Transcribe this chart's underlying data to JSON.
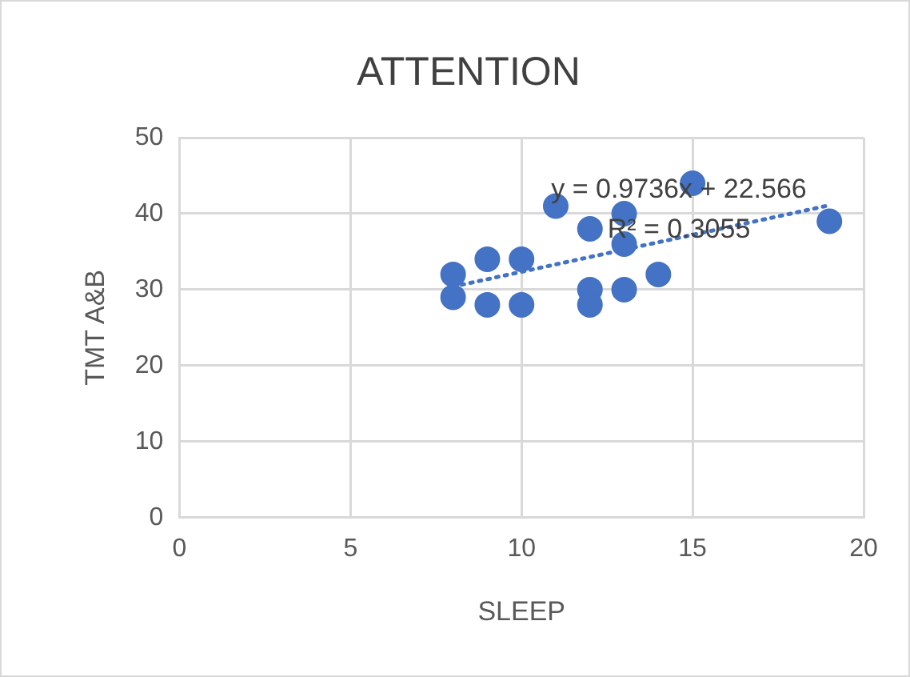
{
  "chart_data": {
    "type": "scatter",
    "title": "ATTENTION",
    "xlabel": "SLEEP",
    "ylabel": "TMT A&B",
    "series": [
      {
        "type": "scatter",
        "color": "#4472c4",
        "x": [
          8,
          8,
          9,
          9,
          10,
          10,
          11,
          12,
          12,
          12,
          13,
          13,
          13,
          14,
          15,
          19
        ],
        "values": [
          32,
          29,
          34,
          28,
          34,
          28,
          41,
          38,
          30,
          28,
          40,
          36,
          30,
          32,
          44,
          39
        ],
        "marker": "circle"
      },
      {
        "type": "line",
        "color": "#4472c4",
        "x": [
          8,
          19
        ],
        "values": [
          30.4,
          41.1
        ],
        "line_style": "dotted",
        "marker": "none"
      }
    ],
    "annotations": [
      "y = 0.9736x + 22.566",
      "R² = 0.3055"
    ],
    "xlim": [
      0,
      20
    ],
    "xticks": [
      0,
      5,
      10,
      15,
      20
    ],
    "ylim": [
      0,
      50
    ],
    "yticks": [
      0,
      10,
      20,
      30,
      40,
      50
    ],
    "grid": true,
    "legend": false
  }
}
